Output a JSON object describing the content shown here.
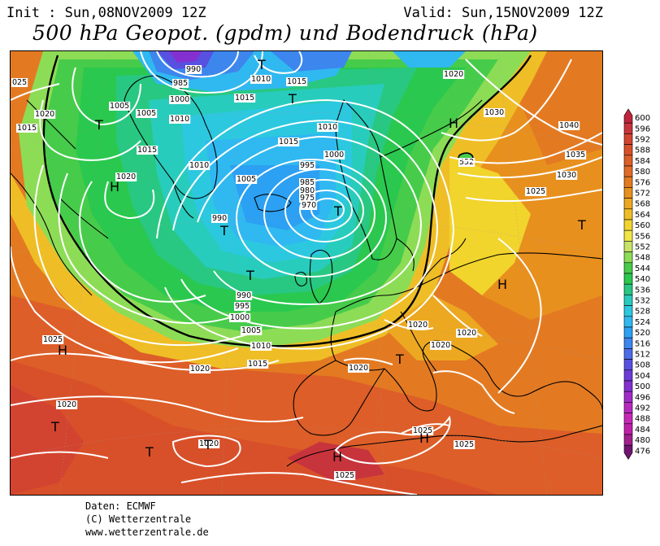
{
  "header": {
    "init": "Init : Sun,08NOV2009 12Z",
    "valid": "Valid: Sun,15NOV2009 12Z",
    "title": "500 hPa Geopot. (gpdm) und Bodendruck (hPa)"
  },
  "footer": {
    "line1": "Daten: ECMWF",
    "line2": "(C) Wetterzentrale",
    "line3": "www.wetterzentrale.de"
  },
  "colors": {
    "coast": "#000000",
    "isobar": "#ffffff",
    "frame": "#000000",
    "contour_552": "#000000"
  },
  "legend": {
    "values": [
      "600",
      "596",
      "592",
      "588",
      "584",
      "580",
      "576",
      "572",
      "568",
      "564",
      "560",
      "556",
      "552",
      "548",
      "544",
      "540",
      "536",
      "532",
      "528",
      "524",
      "520",
      "516",
      "512",
      "508",
      "504",
      "500",
      "496",
      "492",
      "488",
      "484",
      "480",
      "476"
    ],
    "colors": [
      "#c0243c",
      "#c8343c",
      "#d34430",
      "#d8502a",
      "#dd5e28",
      "#e06c28",
      "#e37a22",
      "#e8901e",
      "#eca820",
      "#efbe26",
      "#f1d42c",
      "#f0e646",
      "#c8e466",
      "#8ddc56",
      "#46cc4a",
      "#2ac84e",
      "#28c882",
      "#28ccbc",
      "#2cc8e0",
      "#30b8f0",
      "#2ca0f2",
      "#3c86ee",
      "#4c6ce8",
      "#5850e0",
      "#6c3cd8",
      "#8430d0",
      "#a02cc8",
      "#b828c0",
      "#c828b8",
      "#c020a8",
      "#a0208c",
      "#701470"
    ]
  },
  "map": {
    "labels_high": [
      "H",
      "H",
      "H",
      "H",
      "H",
      "H",
      "H"
    ],
    "labels_low": [
      "T",
      "T",
      "T",
      "T",
      "T",
      "T",
      "T",
      "T",
      "T",
      "T",
      "T"
    ],
    "isobars": [
      "025",
      "1020",
      "1015",
      "1005",
      "1005",
      "1010",
      "1015",
      "1020",
      "990",
      "985",
      "1000",
      "1015",
      "1010",
      "1010",
      "1015",
      "1020",
      "1015",
      "1010",
      "1000",
      "995",
      "985",
      "980",
      "975",
      "970",
      "1005",
      "990",
      "990",
      "995",
      "1000",
      "1005",
      "1010",
      "1015",
      "1030",
      "1040",
      "1035",
      "1030",
      "1025",
      "1020",
      "1020",
      "1020",
      "1020",
      "1025",
      "1020",
      "1020",
      "1020",
      "1025",
      "1025",
      "1025"
    ],
    "contour_label": "552"
  }
}
